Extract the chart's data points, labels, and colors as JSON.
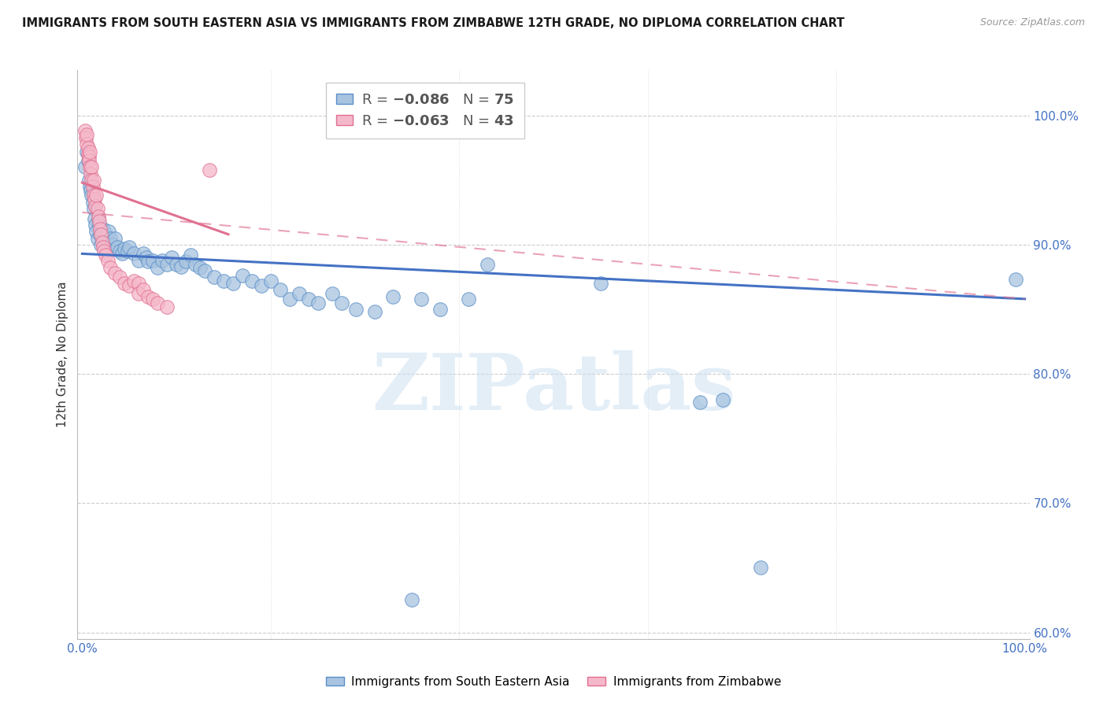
{
  "title": "IMMIGRANTS FROM SOUTH EASTERN ASIA VS IMMIGRANTS FROM ZIMBABWE 12TH GRADE, NO DIPLOMA CORRELATION CHART",
  "source": "Source: ZipAtlas.com",
  "ylabel": "12th Grade, No Diploma",
  "legend_blue_r": "R = ",
  "legend_blue_n": "N = ",
  "legend_blue_nval": "75",
  "legend_pink_r": "R = ",
  "legend_pink_n": "N = ",
  "legend_pink_nval": "43",
  "legend_blue_label": "Immigrants from South Eastern Asia",
  "legend_pink_label": "Immigrants from Zimbabwe",
  "watermark": "ZIPatlas",
  "blue_scatter_color": "#a8c4e0",
  "blue_edge_color": "#5b8fc9",
  "blue_line_color": "#4472c4",
  "pink_scatter_color": "#f5b8ca",
  "pink_edge_color": "#e07090",
  "pink_line_color": "#e07090",
  "bg_color": "#ffffff",
  "grid_color": "#cccccc",
  "blue_scatter": [
    [
      0.003,
      0.96
    ],
    [
      0.005,
      0.972
    ],
    [
      0.006,
      0.965
    ],
    [
      0.007,
      0.95
    ],
    [
      0.008,
      0.945
    ],
    [
      0.009,
      0.942
    ],
    [
      0.01,
      0.938
    ],
    [
      0.011,
      0.933
    ],
    [
      0.012,
      0.928
    ],
    [
      0.013,
      0.92
    ],
    [
      0.014,
      0.915
    ],
    [
      0.015,
      0.91
    ],
    [
      0.016,
      0.905
    ],
    [
      0.017,
      0.92
    ],
    [
      0.018,
      0.915
    ],
    [
      0.019,
      0.908
    ],
    [
      0.02,
      0.9
    ],
    [
      0.022,
      0.912
    ],
    [
      0.023,
      0.905
    ],
    [
      0.025,
      0.908
    ],
    [
      0.026,
      0.903
    ],
    [
      0.028,
      0.91
    ],
    [
      0.03,
      0.905
    ],
    [
      0.032,
      0.9
    ],
    [
      0.035,
      0.905
    ],
    [
      0.037,
      0.898
    ],
    [
      0.04,
      0.895
    ],
    [
      0.042,
      0.893
    ],
    [
      0.045,
      0.897
    ],
    [
      0.048,
      0.895
    ],
    [
      0.05,
      0.898
    ],
    [
      0.055,
      0.893
    ],
    [
      0.06,
      0.888
    ],
    [
      0.065,
      0.893
    ],
    [
      0.068,
      0.89
    ],
    [
      0.07,
      0.887
    ],
    [
      0.075,
      0.888
    ],
    [
      0.08,
      0.882
    ],
    [
      0.085,
      0.888
    ],
    [
      0.09,
      0.885
    ],
    [
      0.095,
      0.89
    ],
    [
      0.1,
      0.885
    ],
    [
      0.105,
      0.883
    ],
    [
      0.11,
      0.887
    ],
    [
      0.115,
      0.892
    ],
    [
      0.12,
      0.885
    ],
    [
      0.125,
      0.882
    ],
    [
      0.13,
      0.88
    ],
    [
      0.14,
      0.875
    ],
    [
      0.15,
      0.872
    ],
    [
      0.16,
      0.87
    ],
    [
      0.17,
      0.876
    ],
    [
      0.18,
      0.872
    ],
    [
      0.19,
      0.868
    ],
    [
      0.2,
      0.872
    ],
    [
      0.21,
      0.865
    ],
    [
      0.22,
      0.858
    ],
    [
      0.23,
      0.862
    ],
    [
      0.24,
      0.858
    ],
    [
      0.25,
      0.855
    ],
    [
      0.265,
      0.862
    ],
    [
      0.275,
      0.855
    ],
    [
      0.29,
      0.85
    ],
    [
      0.31,
      0.848
    ],
    [
      0.33,
      0.86
    ],
    [
      0.36,
      0.858
    ],
    [
      0.38,
      0.85
    ],
    [
      0.41,
      0.858
    ],
    [
      0.43,
      0.885
    ],
    [
      0.55,
      0.87
    ],
    [
      0.655,
      0.778
    ],
    [
      0.68,
      0.78
    ],
    [
      0.35,
      0.625
    ],
    [
      0.72,
      0.65
    ],
    [
      0.99,
      0.873
    ]
  ],
  "pink_scatter": [
    [
      0.003,
      0.988
    ],
    [
      0.004,
      0.983
    ],
    [
      0.005,
      0.978
    ],
    [
      0.005,
      0.985
    ],
    [
      0.006,
      0.975
    ],
    [
      0.006,
      0.97
    ],
    [
      0.007,
      0.968
    ],
    [
      0.007,
      0.965
    ],
    [
      0.008,
      0.96
    ],
    [
      0.008,
      0.972
    ],
    [
      0.009,
      0.955
    ],
    [
      0.01,
      0.96
    ],
    [
      0.01,
      0.95
    ],
    [
      0.011,
      0.945
    ],
    [
      0.012,
      0.95
    ],
    [
      0.012,
      0.938
    ],
    [
      0.013,
      0.935
    ],
    [
      0.014,
      0.93
    ],
    [
      0.015,
      0.938
    ],
    [
      0.016,
      0.928
    ],
    [
      0.017,
      0.922
    ],
    [
      0.018,
      0.918
    ],
    [
      0.019,
      0.912
    ],
    [
      0.02,
      0.908
    ],
    [
      0.021,
      0.902
    ],
    [
      0.022,
      0.898
    ],
    [
      0.023,
      0.895
    ],
    [
      0.025,
      0.892
    ],
    [
      0.027,
      0.888
    ],
    [
      0.03,
      0.882
    ],
    [
      0.035,
      0.878
    ],
    [
      0.04,
      0.875
    ],
    [
      0.045,
      0.87
    ],
    [
      0.05,
      0.868
    ],
    [
      0.055,
      0.872
    ],
    [
      0.06,
      0.87
    ],
    [
      0.06,
      0.862
    ],
    [
      0.065,
      0.865
    ],
    [
      0.07,
      0.86
    ],
    [
      0.075,
      0.858
    ],
    [
      0.08,
      0.855
    ],
    [
      0.09,
      0.852
    ],
    [
      0.135,
      0.958
    ]
  ],
  "blue_line_x": [
    0.0,
    1.0
  ],
  "blue_line_y": [
    0.893,
    0.858
  ],
  "pink_solid_line_x": [
    0.0,
    0.155
  ],
  "pink_solid_line_y": [
    0.948,
    0.908
  ],
  "pink_dash_line_x": [
    0.0,
    1.0
  ],
  "pink_dash_line_y": [
    0.925,
    0.858
  ],
  "ylim_min": 0.595,
  "ylim_max": 1.035,
  "xlim_min": -0.005,
  "xlim_max": 1.005
}
